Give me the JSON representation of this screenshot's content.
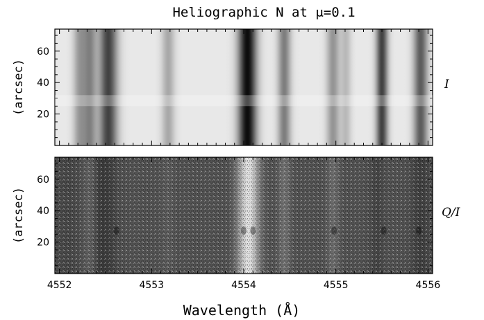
{
  "chart_data": {
    "type": "heatmap",
    "title": "Heliographic N at μ=0.1",
    "xlabel": "Wavelength (Å)",
    "xlim": [
      4551.95,
      4556.05
    ],
    "x_ticks": [
      "4552",
      "4553",
      "4554",
      "4555",
      "4556"
    ],
    "panels": [
      {
        "name": "intensity",
        "ylabel": "(arcsec)",
        "side_label": "I",
        "ylim": [
          0,
          74
        ],
        "y_ticks": [
          "20",
          "40",
          "60"
        ],
        "colormap": "gray",
        "background_level": 0.91,
        "bright_band_y": [
          25,
          32
        ],
        "lines": [
          {
            "x": 4552.22,
            "depth": 0.3,
            "width": 0.05
          },
          {
            "x": 4552.33,
            "depth": 0.38,
            "width": 0.05
          },
          {
            "x": 4552.53,
            "depth": 0.65,
            "width": 0.07
          },
          {
            "x": 4553.18,
            "depth": 0.25,
            "width": 0.05
          },
          {
            "x": 4554.04,
            "depth": 0.87,
            "width": 0.07
          },
          {
            "x": 4554.44,
            "depth": 0.42,
            "width": 0.05
          },
          {
            "x": 4554.97,
            "depth": 0.33,
            "width": 0.05
          },
          {
            "x": 4555.11,
            "depth": 0.18,
            "width": 0.04
          },
          {
            "x": 4555.5,
            "depth": 0.66,
            "width": 0.045
          },
          {
            "x": 4555.92,
            "depth": 0.55,
            "width": 0.055
          }
        ]
      },
      {
        "name": "polarization",
        "ylabel": "(arcsec)",
        "side_label": "Q/I",
        "ylim": [
          0,
          74
        ],
        "y_ticks": [
          "20",
          "40",
          "60"
        ],
        "colormap": "gray",
        "background_level": 0.32,
        "features": [
          {
            "x": 4552.08,
            "delta": -0.04,
            "width": 0.1
          },
          {
            "x": 4552.33,
            "delta": 0.06,
            "width": 0.05
          },
          {
            "x": 4552.45,
            "delta": -0.08,
            "width": 0.05
          },
          {
            "x": 4552.55,
            "delta": -0.06,
            "width": 0.05
          },
          {
            "x": 4553.18,
            "delta": 0.04,
            "width": 0.05
          },
          {
            "x": 4554.05,
            "delta": 0.55,
            "width": 0.08
          },
          {
            "x": 4554.44,
            "delta": 0.12,
            "width": 0.05
          },
          {
            "x": 4554.97,
            "delta": 0.1,
            "width": 0.05
          },
          {
            "x": 4555.45,
            "delta": -0.05,
            "width": 0.05
          },
          {
            "x": 4555.92,
            "delta": -0.07,
            "width": 0.07
          }
        ],
        "spots": [
          {
            "x": 4552.62,
            "y": 37
          },
          {
            "x": 4554.0,
            "y": 37
          },
          {
            "x": 4554.1,
            "y": 37
          },
          {
            "x": 4554.98,
            "y": 37
          },
          {
            "x": 4555.52,
            "y": 37
          },
          {
            "x": 4555.9,
            "y": 37
          }
        ]
      }
    ]
  }
}
